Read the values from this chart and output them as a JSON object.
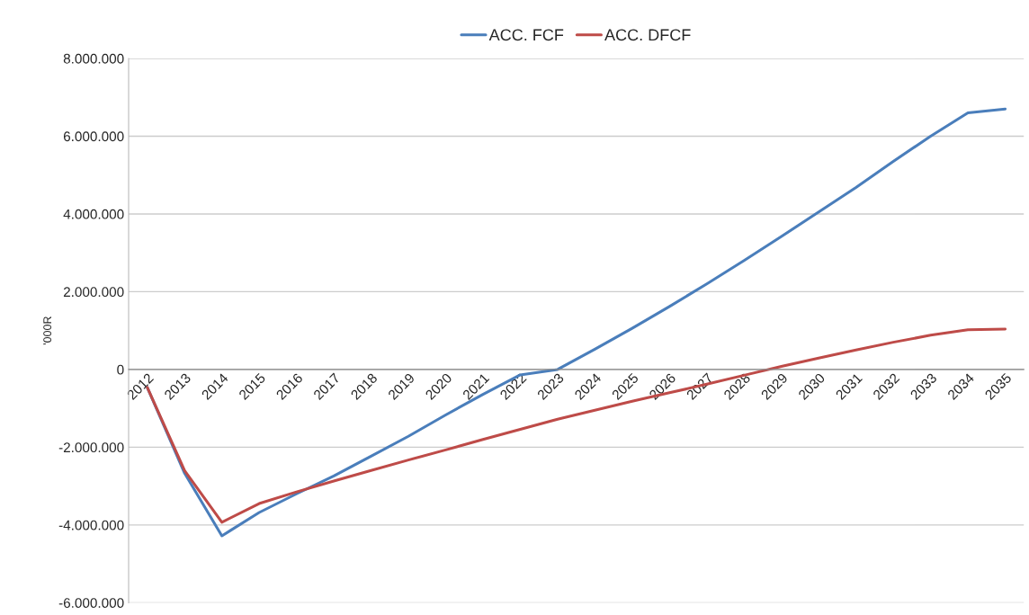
{
  "chart_data": {
    "type": "line",
    "ylabel": "'000R",
    "categories": [
      "2012",
      "2013",
      "2014",
      "2015",
      "2016",
      "2017",
      "2018",
      "2019",
      "2020",
      "2021",
      "2022",
      "2023",
      "2024",
      "2025",
      "2026",
      "2027",
      "2028",
      "2029",
      "2030",
      "2031",
      "2032",
      "2033",
      "2034",
      "2035"
    ],
    "series": [
      {
        "name": "ACC. FCF",
        "color": "#4a7ebb",
        "values": [
          -460000,
          -2670000,
          -4280000,
          -3680000,
          -3200000,
          -2740000,
          -2230000,
          -1720000,
          -1170000,
          -640000,
          -140000,
          0,
          520000,
          1060000,
          1620000,
          2200000,
          2800000,
          3420000,
          4050000,
          4680000,
          5350000,
          6000000,
          6600000,
          6700000
        ]
      },
      {
        "name": "ACC. DFCF",
        "color": "#be4b48",
        "values": [
          -460000,
          -2600000,
          -3930000,
          -3450000,
          -3150000,
          -2870000,
          -2600000,
          -2330000,
          -2070000,
          -1800000,
          -1540000,
          -1280000,
          -1050000,
          -820000,
          -600000,
          -380000,
          -150000,
          80000,
          290000,
          500000,
          700000,
          880000,
          1020000,
          1040000
        ]
      }
    ],
    "ylim": [
      -6000000,
      8000000
    ],
    "yticks": [
      {
        "value": -6000000,
        "label": "-6.000.000"
      },
      {
        "value": -4000000,
        "label": "-4.000.000"
      },
      {
        "value": -2000000,
        "label": "-2.000.000"
      },
      {
        "value": 0,
        "label": "0"
      },
      {
        "value": 2000000,
        "label": "2.000.000"
      },
      {
        "value": 4000000,
        "label": "4.000.000"
      },
      {
        "value": 6000000,
        "label": "6.000.000"
      },
      {
        "value": 8000000,
        "label": "8.000.000"
      }
    ],
    "grid": "y",
    "legend": "top",
    "marker": "none",
    "line_style": "solid"
  }
}
